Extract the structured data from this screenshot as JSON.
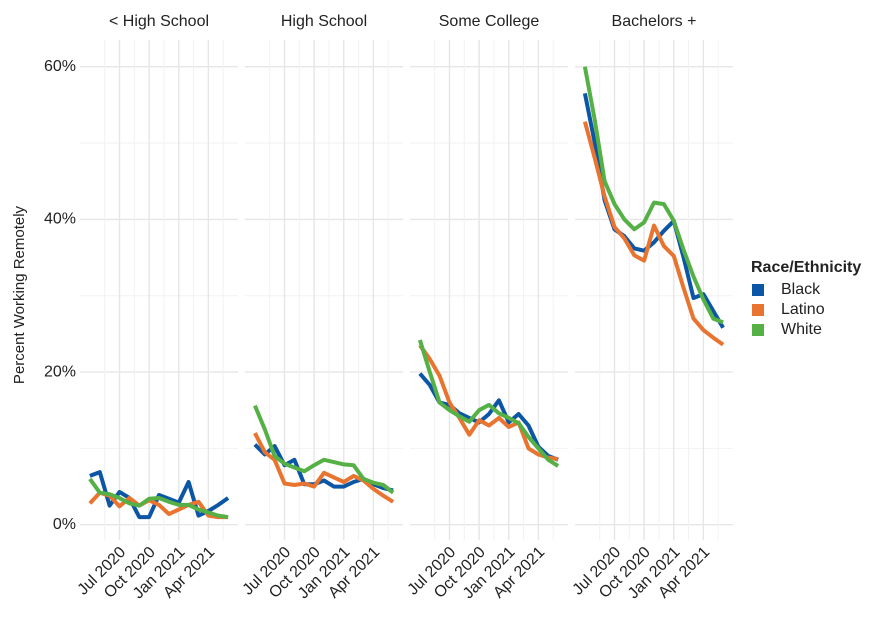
{
  "chart_data": [
    {
      "type": "line",
      "title": "< High School",
      "ylabel": "Percent Working Remotely",
      "legend_title": "Race/Ethnicity",
      "x": [
        "2020-04",
        "2020-05",
        "2020-06",
        "2020-07",
        "2020-08",
        "2020-09",
        "2020-10",
        "2020-11",
        "2020-12",
        "2021-01",
        "2021-02",
        "2021-03",
        "2021-04",
        "2021-05",
        "2021-06"
      ],
      "xlim": [
        "2020-03",
        "2021-07"
      ],
      "xticks": [
        {
          "value": "2020-07",
          "label": "Jul 2020"
        },
        {
          "value": "2020-10",
          "label": "Oct 2020"
        },
        {
          "value": "2021-01",
          "label": "Jan 2021"
        },
        {
          "value": "2021-04",
          "label": "Apr 2021"
        }
      ],
      "ylim": [
        -2,
        63.5
      ],
      "yticks": [
        {
          "value": 0,
          "label": "0%"
        },
        {
          "value": 20,
          "label": "20%"
        },
        {
          "value": 40,
          "label": "40%"
        },
        {
          "value": 60,
          "label": "60%"
        }
      ],
      "grid": true,
      "series": [
        {
          "name": "Black",
          "color": "#0b56a5",
          "values": [
            6.4,
            6.9,
            2.5,
            4.3,
            3.5,
            1.0,
            1.0,
            3.9,
            3.4,
            2.9,
            5.6,
            1.2,
            1.8,
            2.6,
            3.5
          ]
        },
        {
          "name": "Latino",
          "color": "#e8742f",
          "values": [
            2.8,
            4.2,
            3.8,
            2.4,
            3.5,
            2.5,
            3.2,
            2.6,
            1.4,
            2.0,
            2.6,
            3.0,
            1.2,
            1.0,
            1.0
          ]
        },
        {
          "name": "White",
          "color": "#55b046",
          "values": [
            6.0,
            4.2,
            4.0,
            3.5,
            2.8,
            2.5,
            3.4,
            3.5,
            3.0,
            2.6,
            2.6,
            2.0,
            1.6,
            1.2,
            1.0
          ]
        }
      ]
    },
    {
      "type": "line",
      "title": "High School",
      "x": [
        "2020-04",
        "2020-05",
        "2020-06",
        "2020-07",
        "2020-08",
        "2020-09",
        "2020-10",
        "2020-11",
        "2020-12",
        "2021-01",
        "2021-02",
        "2021-03",
        "2021-04",
        "2021-05",
        "2021-06"
      ],
      "xlim": [
        "2020-03",
        "2021-07"
      ],
      "xticks": [
        {
          "value": "2020-07",
          "label": "Jul 2020"
        },
        {
          "value": "2020-10",
          "label": "Oct 2020"
        },
        {
          "value": "2021-01",
          "label": "Jan 2021"
        },
        {
          "value": "2021-04",
          "label": "Apr 2021"
        }
      ],
      "ylim": [
        -2,
        63.5
      ],
      "yticks": [
        0,
        20,
        40,
        60
      ],
      "series": [
        {
          "color": "#0b56a5",
          "values": [
            10.5,
            9.2,
            10.3,
            7.8,
            8.5,
            5.3,
            5.3,
            5.8,
            5.0,
            5.0,
            5.6,
            6.0,
            5.3,
            4.8,
            4.5
          ]
        },
        {
          "color": "#e8742f",
          "values": [
            12.0,
            9.5,
            8.5,
            5.4,
            5.2,
            5.4,
            5.0,
            6.8,
            6.2,
            5.6,
            6.4,
            5.8,
            4.7,
            3.8,
            3.0
          ]
        },
        {
          "color": "#55b046",
          "values": [
            15.6,
            12.5,
            9.0,
            8.0,
            7.5,
            7.0,
            7.8,
            8.5,
            8.2,
            7.9,
            7.8,
            6.0,
            5.5,
            5.2,
            4.2
          ]
        }
      ]
    },
    {
      "type": "line",
      "title": "Some College",
      "x": [
        "2020-04",
        "2020-05",
        "2020-06",
        "2020-07",
        "2020-08",
        "2020-09",
        "2020-10",
        "2020-11",
        "2020-12",
        "2021-01",
        "2021-02",
        "2021-03",
        "2021-04",
        "2021-05",
        "2021-06"
      ],
      "xlim": [
        "2020-03",
        "2021-07"
      ],
      "xticks": [
        {
          "value": "2020-07",
          "label": "Jul 2020"
        },
        {
          "value": "2020-10",
          "label": "Oct 2020"
        },
        {
          "value": "2021-01",
          "label": "Jan 2021"
        },
        {
          "value": "2021-04",
          "label": "Apr 2021"
        }
      ],
      "ylim": [
        -2,
        63.5
      ],
      "yticks": [
        0,
        20,
        40,
        60
      ],
      "series": [
        {
          "color": "#0b56a5",
          "values": [
            19.8,
            18.3,
            16.0,
            15.7,
            14.6,
            14.0,
            13.4,
            14.5,
            16.3,
            13.4,
            14.5,
            13.0,
            10.2,
            9.0,
            8.5
          ]
        },
        {
          "color": "#e8742f",
          "values": [
            23.5,
            21.7,
            19.5,
            16.0,
            14.0,
            11.8,
            13.7,
            13.0,
            14.0,
            12.8,
            13.4,
            10.0,
            9.2,
            8.8,
            8.6
          ]
        },
        {
          "color": "#55b046",
          "values": [
            24.2,
            20.0,
            16.0,
            15.0,
            14.2,
            13.5,
            15.0,
            15.7,
            14.6,
            14.0,
            13.3,
            11.5,
            10.0,
            8.5,
            7.7
          ]
        }
      ]
    },
    {
      "type": "line",
      "title": "Bachelors +",
      "x": [
        "2020-04",
        "2020-05",
        "2020-06",
        "2020-07",
        "2020-08",
        "2020-09",
        "2020-10",
        "2020-11",
        "2020-12",
        "2021-01",
        "2021-02",
        "2021-03",
        "2021-04",
        "2021-05",
        "2021-06"
      ],
      "xlim": [
        "2020-03",
        "2021-07"
      ],
      "xticks": [
        {
          "value": "2020-07",
          "label": "Jul 2020"
        },
        {
          "value": "2020-10",
          "label": "Oct 2020"
        },
        {
          "value": "2021-01",
          "label": "Jan 2021"
        },
        {
          "value": "2021-04",
          "label": "Apr 2021"
        }
      ],
      "ylim": [
        -2,
        63.5
      ],
      "yticks": [
        0,
        20,
        40,
        60
      ],
      "series": [
        {
          "color": "#0b56a5",
          "values": [
            56.5,
            50.0,
            42.5,
            38.7,
            37.8,
            36.2,
            35.9,
            37.0,
            38.5,
            39.8,
            35.0,
            29.7,
            30.2,
            28.0,
            25.8
          ]
        },
        {
          "color": "#e8742f",
          "values": [
            52.8,
            48.0,
            43.0,
            39.0,
            37.5,
            35.3,
            34.6,
            39.2,
            36.5,
            35.2,
            31.0,
            27.0,
            25.5,
            24.5,
            23.6
          ]
        },
        {
          "color": "#55b046",
          "values": [
            60.0,
            53.0,
            45.0,
            42.0,
            40.0,
            38.7,
            39.6,
            42.2,
            42.0,
            39.8,
            36.0,
            32.5,
            29.5,
            27.0,
            26.5
          ]
        }
      ]
    }
  ]
}
